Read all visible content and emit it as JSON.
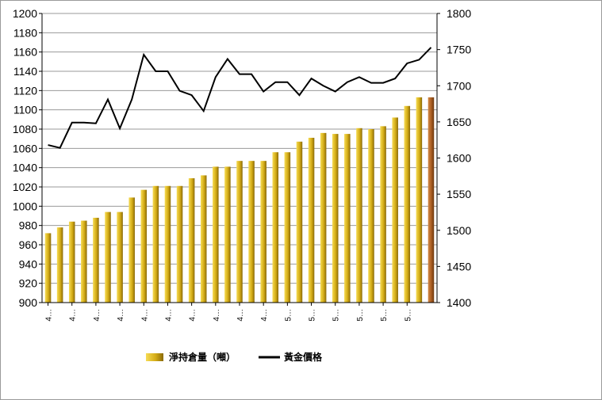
{
  "chart_data": {
    "type": "bar+line",
    "x_tick_labels": [
      "4…",
      "4…",
      "4…",
      "4…",
      "4…",
      "4…",
      "4…",
      "4…",
      "4…",
      "4…",
      "5…",
      "5…",
      "5…",
      "5…",
      "5…",
      "5…"
    ],
    "bar_series": {
      "name": "淨持倉量（噸）",
      "axis": "left",
      "values": [
        972,
        978,
        984,
        985,
        988,
        994,
        994,
        1009,
        1017,
        1021,
        1021,
        1021,
        1029,
        1032,
        1041,
        1041,
        1047,
        1047,
        1047,
        1056,
        1056,
        1067,
        1071,
        1076,
        1075,
        1075,
        1081,
        1080,
        1083,
        1092,
        1104,
        1113,
        1113
      ]
    },
    "line_series": {
      "name": "黃金價格",
      "axis": "right",
      "values": [
        1618,
        1614,
        1649,
        1649,
        1648,
        1681,
        1641,
        1681,
        1743,
        1720,
        1720,
        1693,
        1687,
        1665,
        1712,
        1737,
        1716,
        1716,
        1692,
        1705,
        1705,
        1687,
        1710,
        1700,
        1692,
        1705,
        1712,
        1704,
        1704,
        1710,
        1731,
        1736,
        1753
      ]
    },
    "left_axis": {
      "min": 900,
      "max": 1200,
      "step": 20
    },
    "right_axis": {
      "min": 1400,
      "max": 1800,
      "step": 50
    },
    "grid": true,
    "legend_position": "bottom",
    "colors": {
      "bar_light": "#f2d23c",
      "bar_dark": "#8a6a08",
      "last_bar_light": "#d07a3a",
      "last_bar_dark": "#6e3a10",
      "line": "#000000",
      "grid": "#9a9a9a"
    }
  }
}
